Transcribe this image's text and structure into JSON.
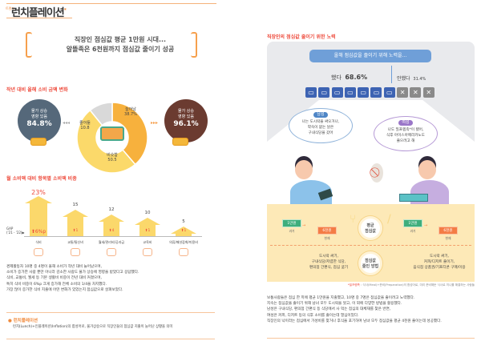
{
  "header": {
    "tag": "트렌드",
    "title": "런치플레이션",
    "title_mark": "*"
  },
  "headline": {
    "line1": "직장인 점심값 평균 1만원 시대...",
    "line2": "알뜰족은 6천원까지 점심값 줄이기 성공"
  },
  "spending_change": {
    "title": "작년 대비 올해 소비 금액 변화",
    "left_circle": {
      "line1": "물가 상승",
      "line2": "영향 있음",
      "value": "84.8%"
    },
    "right_circle": {
      "line1": "물가 상승",
      "line2": "영향 있음",
      "value": "96.1%"
    },
    "donut": [
      {
        "label": "늘어남",
        "value": 38.7,
        "display": "38.7%",
        "color": "#f7b13d"
      },
      {
        "label": "비슷함",
        "value": 50.5,
        "display": "50.5",
        "color": "#fbd96a"
      },
      {
        "label": "줄어듦",
        "value": 10.8,
        "display": "10.8",
        "color": "#d9d9d9"
      }
    ]
  },
  "category_share": {
    "title": "월 소비액 대비 항목별 소비액 비중",
    "gap_label": "GAP",
    "gap_sub": "('21 - '22)▶",
    "max": 23,
    "items": [
      {
        "label": "식비",
        "value": 23,
        "display": "23%",
        "gap": "6%p",
        "icon": "food-icon"
      },
      {
        "label": "교통/통신비",
        "value": 15,
        "display": "15",
        "gap": "1",
        "icon": "car-icon"
      },
      {
        "label": "월세/관리비/공과금",
        "value": 12,
        "display": "12",
        "gap": "4",
        "icon": "house-icon"
      },
      {
        "label": "교육비",
        "value": 10,
        "display": "10",
        "gap": "1",
        "icon": "graduation-cap-icon"
      },
      {
        "label": "의류/패션잡화/미용비",
        "value": 5,
        "display": "5",
        "gap": "1",
        "icon": "shopping-bag-icon"
      }
    ]
  },
  "left_paragraph": [
    "경제활동자 10명 중 4명이 올해 소비가 작년 대비 늘어났으며,",
    "소비가 증가한 사람 뿐만 아니라 감소한 사람도 물가 상승에 영향을 받았다고 응답했다.",
    "식비, 교통비, 월세 등 기본 생활비 비중이 전년 대비 커졌으며,",
    "특히 식비 비중이 6%p 크게 증가해 전체 소비의 1/4을 차지했다.",
    "가장 많이 증가한 식비 지출에 어떤 변화가 있었는지 점심값으로 살펴보았다."
  ],
  "definition": {
    "title": "런치플레이션",
    "text": "런치(Lunch)+인플레이션(Inflation)의 합성어로, 물가상승으로 직장인들의 점심값 지출이 늘어난 상황을 의미"
  },
  "effort": {
    "title": "직장인의 점심값 줄이기 위한 노력",
    "question": "올해 점심값을 줄이기 위해 노력을...",
    "yes_label": "했다",
    "yes_value": "68.6%",
    "yes_pct": 68.6,
    "no_label": "안했다",
    "no_value": "31.4%",
    "male": {
      "tag": "남성",
      "lines": [
        "나는 도시락을 싸오거나,",
        "약속이 없는 날은",
        "구내식당을 갔어"
      ]
    },
    "female": {
      "tag": "여성",
      "lines": [
        "나도 밀프렙족*이 됐어,",
        "식후 아이스아메리카노도",
        "줄으려고 해"
      ]
    }
  },
  "lunch_cost": {
    "center": [
      "평균",
      "점심값"
    ],
    "male": {
      "past": "1만원",
      "past_label": "과거",
      "now": "6천원",
      "now_label": "현재"
    },
    "female": {
      "past": "1만원",
      "past_label": "과거",
      "now": "6천원",
      "now_label": "현재"
    }
  },
  "methods": {
    "center": [
      "점심값",
      "줄인 방법"
    ],
    "male": [
      "도시락 싸기,",
      "구내식당/저렴한 식당,",
      "편의점 간편식, 점심 굶기"
    ],
    "female": [
      "도시락 싸기,",
      "커피/디저트 줄이기,",
      "음식점 상품권/기프티콘 구매/이용"
    ]
  },
  "footnote": {
    "term": "*밀프렙족",
    "text": ": 식사(Meal)+준비(Preparation)의 합성어로, 미리 준비해둔 식사로 끼니를 해결하는 사람들"
  },
  "right_paragraph": [
    "보통사람들은 점심 한 끼에 평균 1만원을 지출했고, 10명 중 7명은 점심값을 줄이려고 노력했다.",
    "지속는 점심값을 줄이기 위해 남녀 모두 도시락을 쌌고, 이 외에 다양한 방법을 활용했다.",
    "남성은 구내식당, 편의점 간편식 등 식당에서 사 먹는 점심의 대체재를 찾은 반면,",
    "여성은 커피, 디저트 등의 식후 소비를 줄이는데 열심이었다.",
    "직장인의 낙이라는 점심에서 가성비를 찾거나 후식을 포기하며 남녀 모두 점심값을 평균 4천원 줄이는데 성공했다."
  ]
}
